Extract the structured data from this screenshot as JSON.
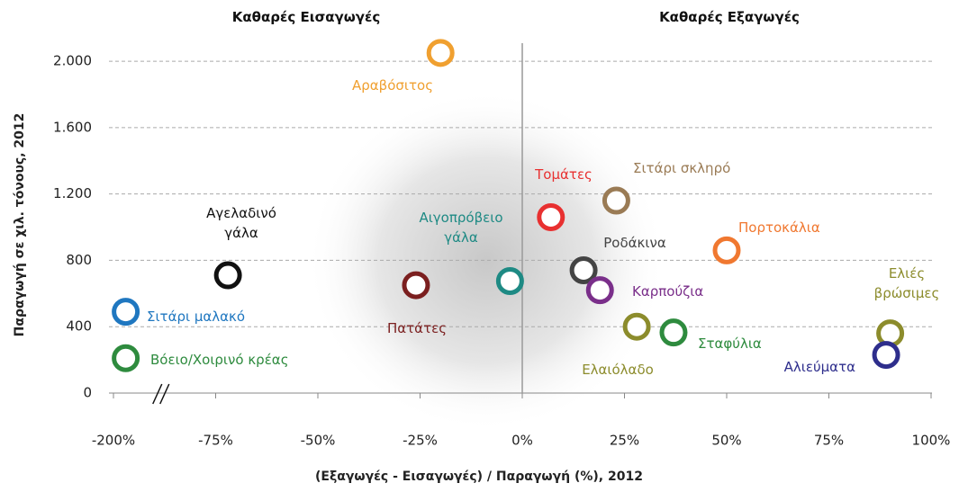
{
  "chart_data": {
    "type": "scatter",
    "left_header": "Καθαρές Εισαγωγές",
    "right_header": "Καθαρές Εξαγωγές",
    "x_label": "(Εξαγωγές - Εισαγωγές) / Παραγωγή (%), 2012",
    "y_label": "Παραγωγή σε χιλ. τόνους, 2012",
    "xlim": [
      -205,
      100
    ],
    "xticks": [
      {
        "value": -200,
        "label": "-200%"
      },
      {
        "value": -75,
        "label": "-75%"
      },
      {
        "value": -50,
        "label": "-50%"
      },
      {
        "value": -25,
        "label": "-25%"
      },
      {
        "value": 0,
        "label": "0%"
      },
      {
        "value": 25,
        "label": "25%"
      },
      {
        "value": 50,
        "label": "50%"
      },
      {
        "value": 75,
        "label": "75%"
      },
      {
        "value": 100,
        "label": "100%"
      }
    ],
    "x_axis_break": true,
    "ylim": [
      0,
      2060
    ],
    "yticks": [
      0,
      400,
      800,
      {
        "value": 1200,
        "label": "1.200"
      },
      {
        "value": 1600,
        "label": "1.600"
      },
      {
        "value": 2000,
        "label": "2.000"
      }
    ],
    "grid": true,
    "series": [
      {
        "name": "Αραβόσιτος",
        "color": "#f0a030",
        "x": [
          -20
        ],
        "values": [
          2050
        ]
      },
      {
        "name": "Σιτάρι μαλακό",
        "color": "#1f77c0",
        "x": [
          -185
        ],
        "values": [
          490
        ]
      },
      {
        "name": "Βόειο/Χοιρινό κρέας",
        "color": "#2e8b3e",
        "x": [
          -185
        ],
        "values": [
          210
        ]
      },
      {
        "name": "Αγελαδινό γάλα",
        "color": "#111111",
        "x": [
          -72
        ],
        "values": [
          710
        ]
      },
      {
        "name": "Πατάτες",
        "color": "#7b1f1f",
        "x": [
          -26
        ],
        "values": [
          650
        ]
      },
      {
        "name": "Αιγοπρόβειο γάλα",
        "color": "#1e8a84",
        "x": [
          -3
        ],
        "values": [
          675
        ]
      },
      {
        "name": "Τομάτες",
        "color": "#e83030",
        "x": [
          7
        ],
        "values": [
          1060
        ]
      },
      {
        "name": "Σιτάρι σκληρό",
        "color": "#9a7b55",
        "x": [
          23
        ],
        "values": [
          1160
        ]
      },
      {
        "name": "Ροδάκινα",
        "color": "#444444",
        "x": [
          15
        ],
        "values": [
          740
        ]
      },
      {
        "name": "Καρπούζια",
        "color": "#7a2f8a",
        "x": [
          19
        ],
        "values": [
          620
        ]
      },
      {
        "name": "Ελαιόλαδο",
        "color": "#8c8c2c",
        "x": [
          28
        ],
        "values": [
          400
        ]
      },
      {
        "name": "Σταφύλια",
        "color": "#2e8b3e",
        "x": [
          37
        ],
        "values": [
          365
        ]
      },
      {
        "name": "Πορτοκάλια",
        "color": "#f07830",
        "x": [
          50
        ],
        "values": [
          860
        ]
      },
      {
        "name": "Ελιές βρώσιμες",
        "color": "#8c8c2c",
        "x": [
          90
        ],
        "values": [
          360
        ]
      },
      {
        "name": "Αλιεύματα",
        "color": "#2e2e8c",
        "x": [
          89
        ],
        "values": [
          230
        ]
      }
    ]
  }
}
